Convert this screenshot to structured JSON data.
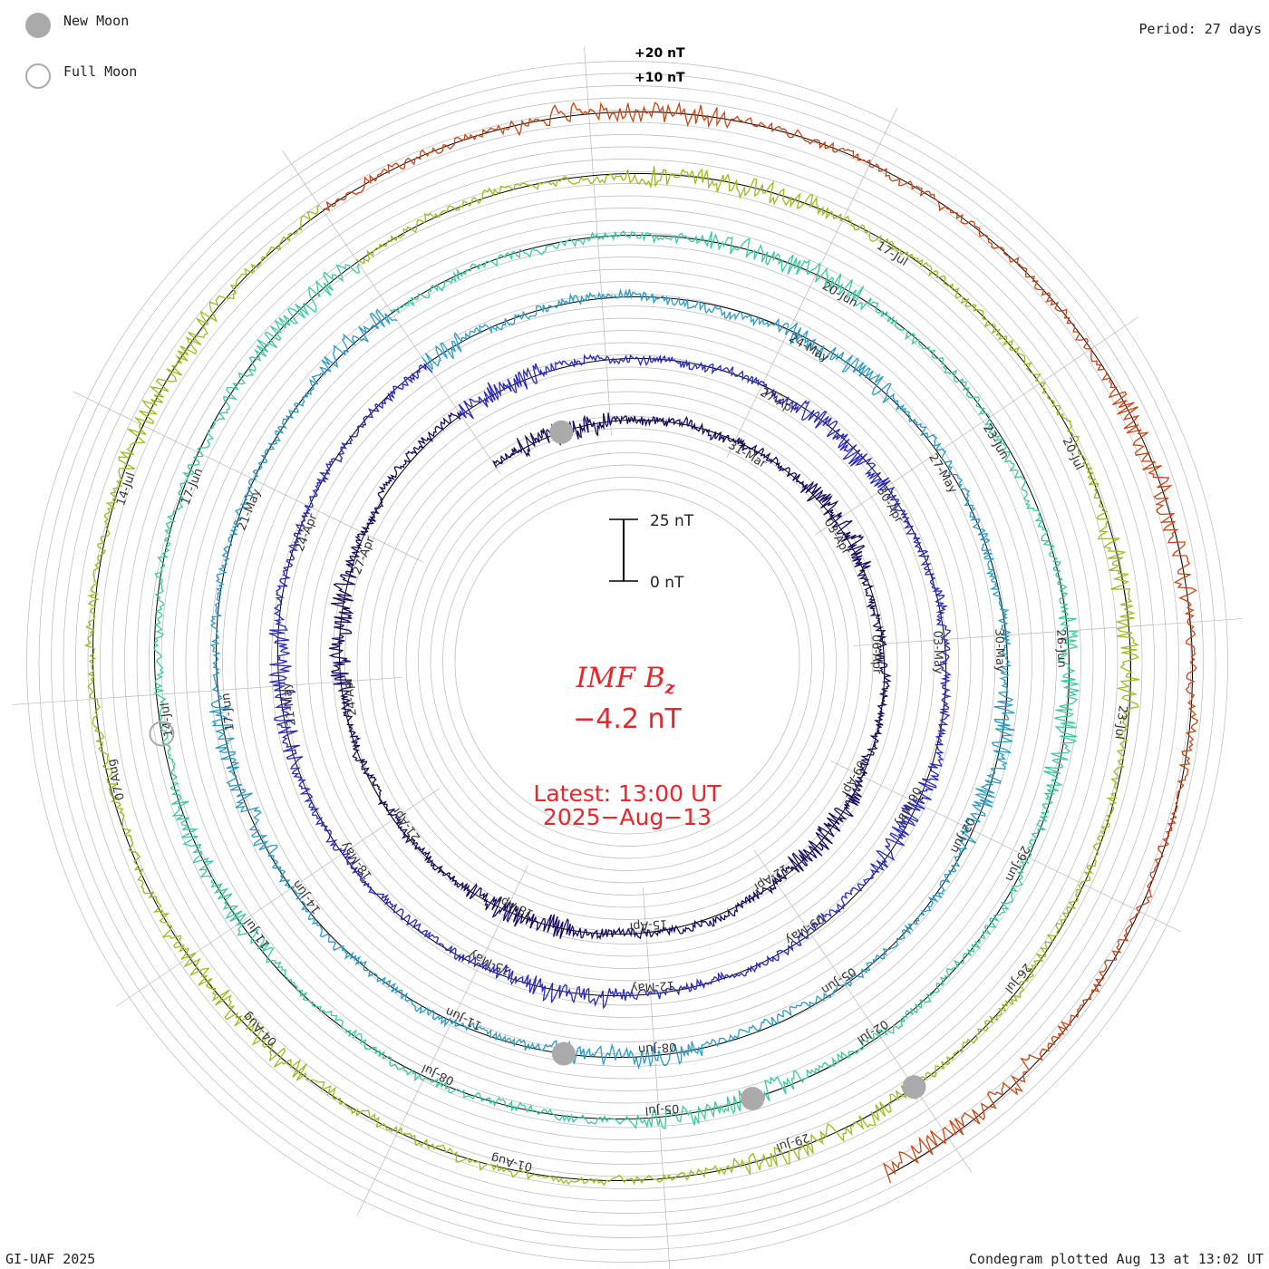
{
  "header": {
    "legend_new_moon": "New Moon",
    "legend_full_moon": "Full Moon",
    "period_label": "Period: 27 days"
  },
  "footer": {
    "credit": "GI-UAF 2025",
    "plotted_label": "Condegram plotted Aug 13 at 13:02 UT"
  },
  "colors": {
    "grid": "#b8b8b8",
    "baseline": "#000000",
    "title_red": "#e8262c",
    "moon_gray": "#aaaaaa"
  },
  "chart_data": {
    "type": "condegram",
    "title": "IMF Bz",
    "title_main": "IMF B",
    "title_sub": "z",
    "current_value": "−4.2 nT",
    "latest_time": "Latest: 13:00 UT",
    "latest_date": "2025−Aug−13",
    "period_days": 27,
    "scale_bar": {
      "top_label": "25 nT",
      "bottom_label": "0 nT",
      "range_nT": [
        0,
        25
      ]
    },
    "offset_labels": [
      "+20 nT",
      "+10 nT"
    ],
    "rotations": [
      {
        "index": 1,
        "color": "#1a0a5c",
        "start": "17-Mar",
        "end": "13-Apr",
        "date_labels": [
          "31-Mar",
          "03-Apr",
          "06-Apr",
          "09-Apr",
          "12-Apr",
          "15-Apr",
          "18-Apr",
          "21-Apr",
          "24-Apr",
          "27-Apr"
        ]
      },
      {
        "index": 2,
        "color": "#2a2ab8",
        "start": "13-Apr",
        "end": "10-May",
        "date_labels": [
          "27-Apr",
          "30-Apr",
          "03-May",
          "06-May",
          "09-May",
          "12-May",
          "15-May",
          "18-May",
          "21-May",
          "24-Apr"
        ]
      },
      {
        "index": 3,
        "color": "#2a9bc4",
        "start": "10-May",
        "end": "06-Jun",
        "date_labels": [
          "24-May",
          "27-May",
          "30-May",
          "02-Jun",
          "05-Jun",
          "08-Jun",
          "11-Jun",
          "14-Jun",
          "17-Jun",
          "21-May"
        ]
      },
      {
        "index": 4,
        "color": "#3cc8a0",
        "start": "06-Jun",
        "end": "03-Jul",
        "date_labels": [
          "20-Jun",
          "23-Jun",
          "26-Jun",
          "29-Jun",
          "02-Jul",
          "05-Jul",
          "08-Jul",
          "11-Jul",
          "14-Jul",
          "17-Jun"
        ]
      },
      {
        "index": 5,
        "color": "#a3b81e",
        "start": "03-Jul",
        "end": "30-Jul",
        "date_labels": [
          "17-Jul",
          "20-Jul",
          "23-Jul",
          "26-Jul",
          "29-Jul",
          "01-Aug",
          "04-Aug",
          "07-Aug",
          "14-Jul"
        ]
      },
      {
        "index": 6,
        "color": "#c84614",
        "start": "30-Jul",
        "end": "13-Aug",
        "date_labels": []
      }
    ],
    "moons": [
      {
        "type": "new",
        "rotation": 1,
        "date": "27-Mar"
      },
      {
        "type": "new",
        "rotation": 3,
        "date": "27-May"
      },
      {
        "type": "new",
        "rotation": 4,
        "date": "25-Jun"
      },
      {
        "type": "new",
        "rotation": 5,
        "date": "24-Jul"
      },
      {
        "type": "full",
        "rotation": 4,
        "date": "10-Jul"
      }
    ]
  }
}
